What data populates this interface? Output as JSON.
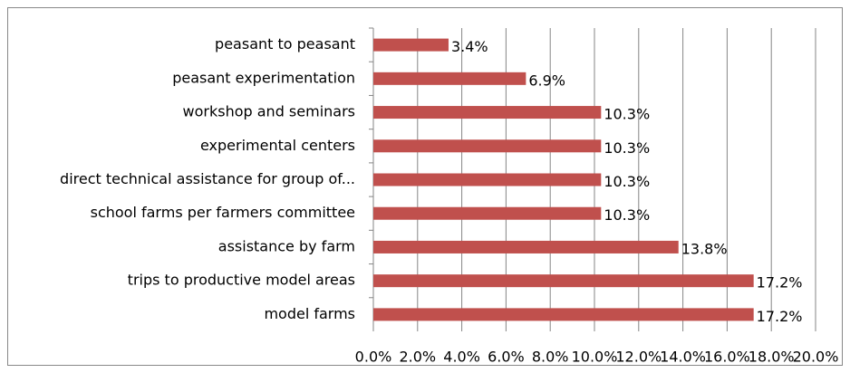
{
  "chart_data": {
    "type": "bar",
    "orientation": "horizontal",
    "categories": [
      "peasant to peasant",
      "peasant experimentation",
      "workshop and seminars",
      "experimental centers",
      "direct technical assistance for group of...",
      "school farms per farmers committee",
      "assistance by farm",
      "trips to productive model areas",
      "model farms"
    ],
    "values": [
      3.4,
      6.9,
      10.3,
      10.3,
      10.3,
      10.3,
      13.8,
      17.2,
      17.2
    ],
    "value_labels": [
      "3.4%",
      "6.9%",
      "10.3%",
      "10.3%",
      "10.3%",
      "10.3%",
      "13.8%",
      "17.2%",
      "17.2%"
    ],
    "color": "#c0504d",
    "xlim": [
      0,
      20
    ],
    "xticks": [
      {
        "value": 0,
        "label": "0.0%"
      },
      {
        "value": 2,
        "label": "2.0%"
      },
      {
        "value": 4,
        "label": "4.0%"
      },
      {
        "value": 6,
        "label": "6.0%"
      },
      {
        "value": 8,
        "label": "8.0%"
      },
      {
        "value": 10,
        "label": "10.0%"
      },
      {
        "value": 12,
        "label": "12.0%"
      },
      {
        "value": 14,
        "label": "14.0%"
      },
      {
        "value": 16,
        "label": "16.0%"
      },
      {
        "value": 18,
        "label": "18.0%"
      },
      {
        "value": 20,
        "label": "20.0%"
      }
    ],
    "grid": true
  }
}
